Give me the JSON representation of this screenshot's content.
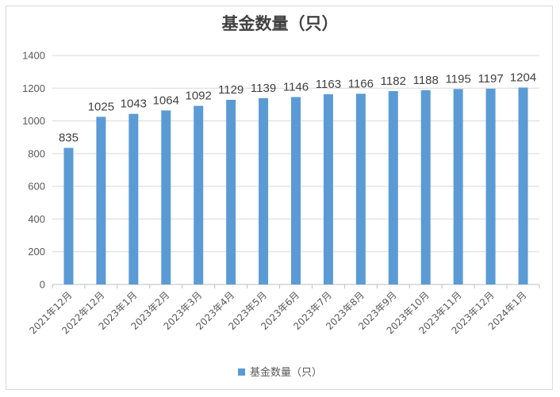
{
  "chart_data": {
    "type": "bar",
    "title": "基金数量（只）",
    "categories": [
      "2021年12月",
      "2022年12月",
      "2023年1月",
      "2023年2月",
      "2023年3月",
      "2023年4月",
      "2023年5月",
      "2023年6月",
      "2023年7月",
      "2023年8月",
      "2023年9月",
      "2023年10月",
      "2023年11月",
      "2023年12月",
      "2024年1月"
    ],
    "series": [
      {
        "name": "基金数量（只）",
        "values": [
          835,
          1025,
          1043,
          1064,
          1092,
          1129,
          1139,
          1146,
          1163,
          1166,
          1182,
          1188,
          1195,
          1197,
          1204
        ]
      }
    ],
    "ylim": [
      0,
      1400
    ],
    "yticks": [
      0,
      200,
      400,
      600,
      800,
      1000,
      1200,
      1400
    ],
    "grid": true,
    "legend": "bottom",
    "bar_color": "#5b9bd5",
    "data_labels": true
  }
}
